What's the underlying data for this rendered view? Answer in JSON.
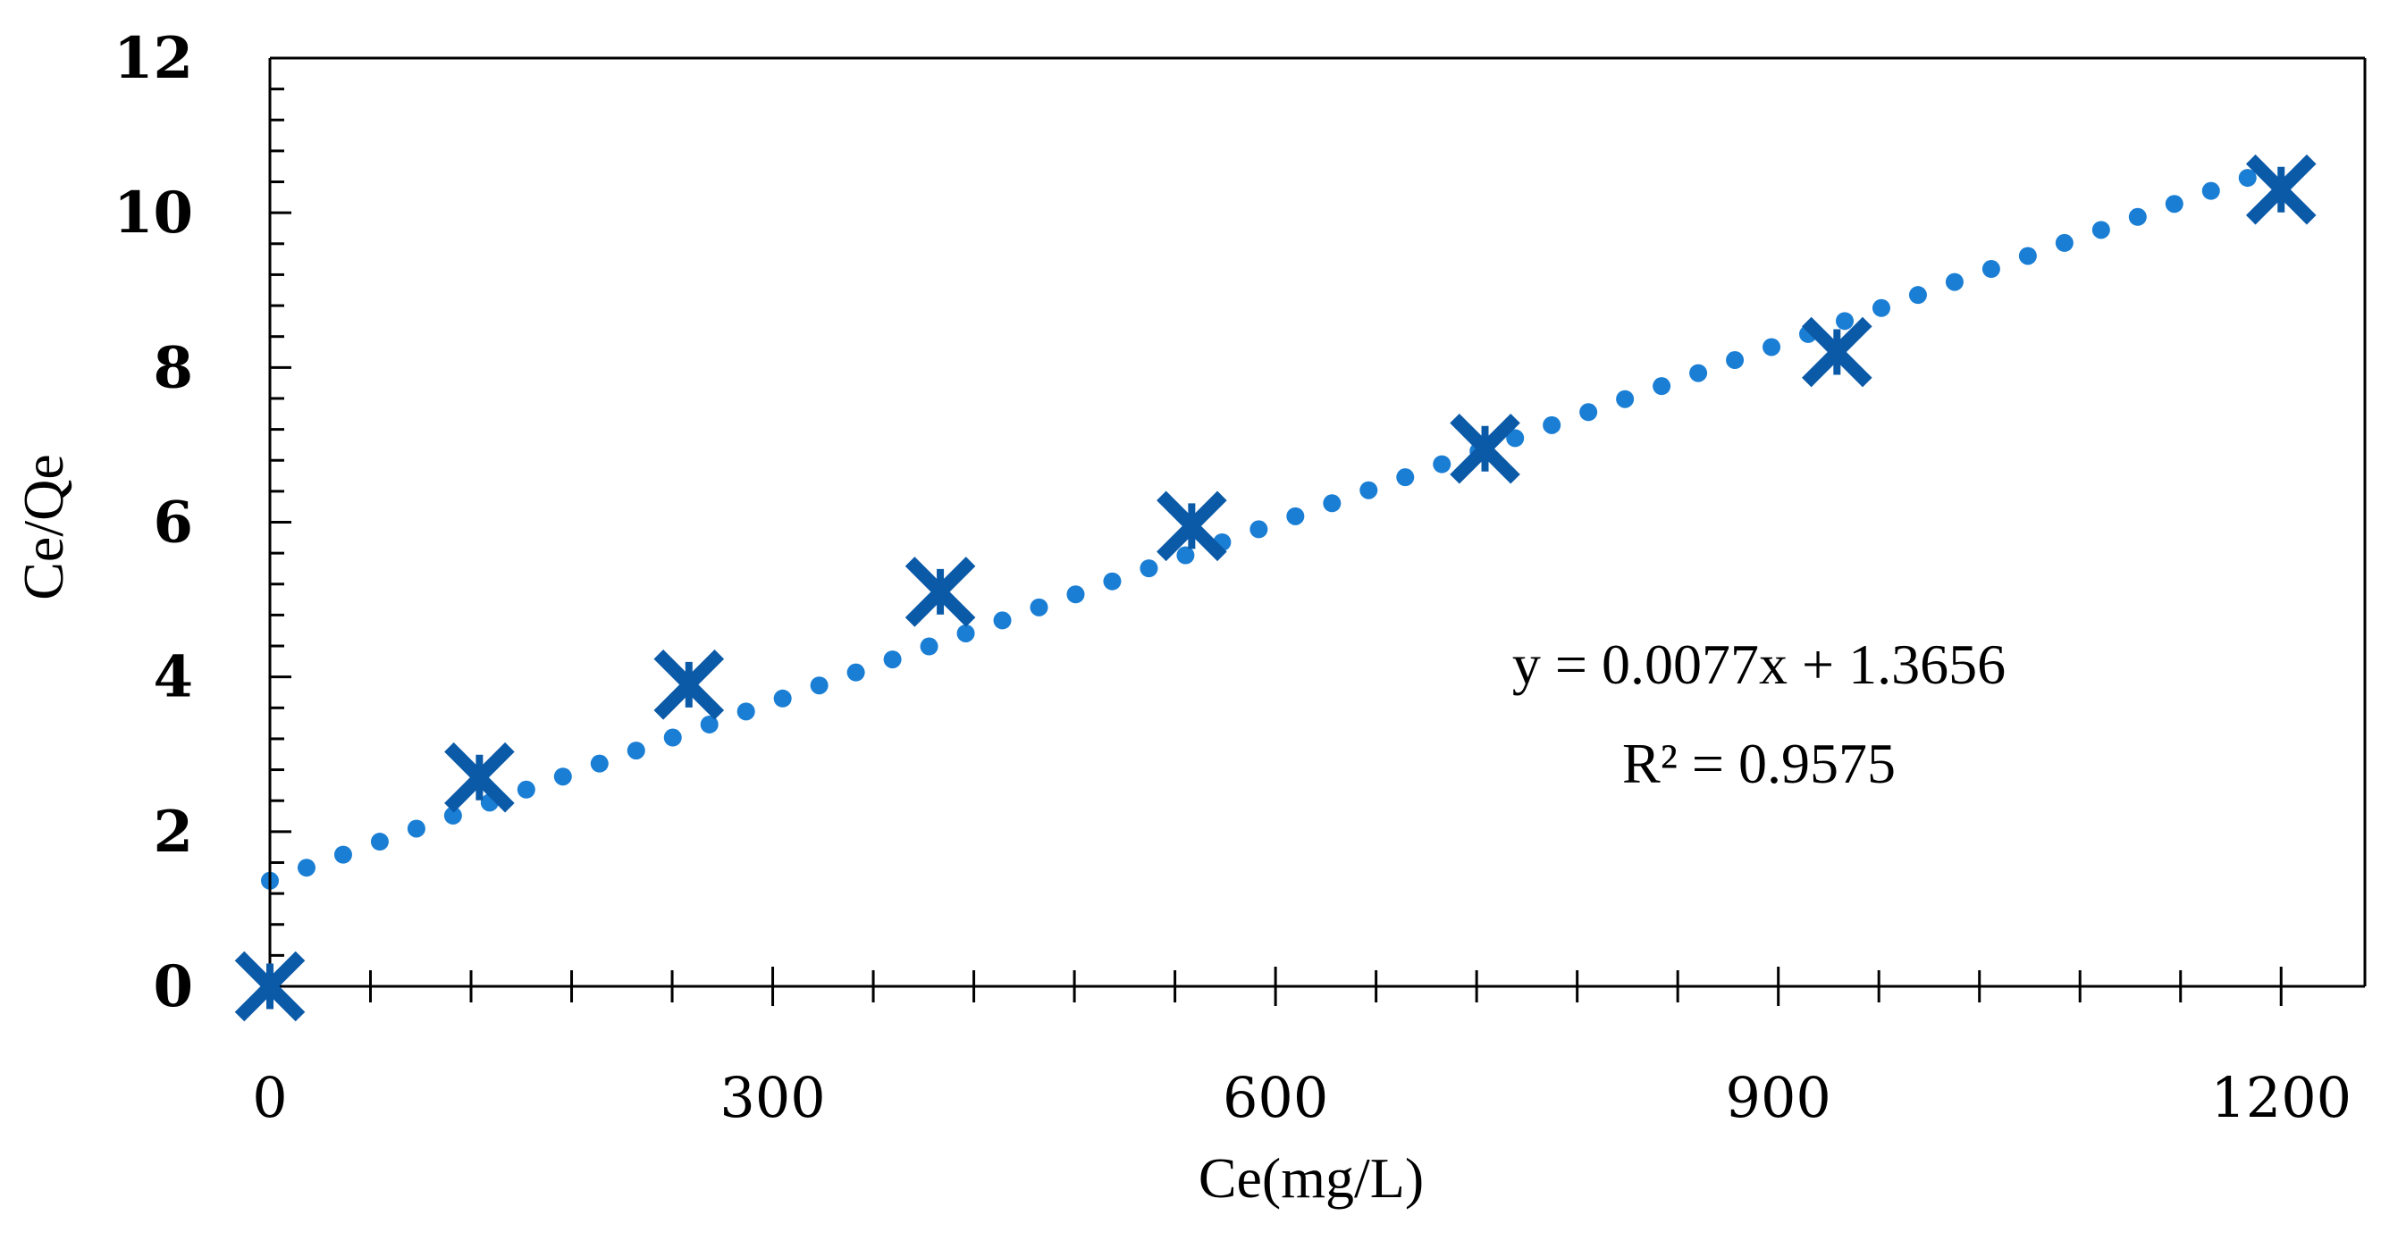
{
  "chart_data": {
    "type": "scatter",
    "title": "",
    "xlabel": "Ce(mg/L)",
    "ylabel": "Ce/Qe",
    "xlim": [
      0,
      1250
    ],
    "ylim": [
      0,
      12
    ],
    "x_ticks": [
      0,
      300,
      600,
      900,
      1200
    ],
    "x_tick_labels": [
      "0",
      "300",
      "600",
      "900",
      "1200"
    ],
    "x_minor_step": 60,
    "y_ticks": [
      0,
      2,
      4,
      6,
      8,
      10,
      12
    ],
    "y_tick_labels": [
      "0",
      "2",
      "4",
      "6",
      "8",
      "10",
      "12"
    ],
    "y_minor_step": 0.4,
    "grid": false,
    "series": [
      {
        "name": "Ce/Qe",
        "marker": "x",
        "x": [
          0,
          125,
          250,
          400,
          550,
          725,
          935,
          1200
        ],
        "y": [
          0,
          2.7,
          3.9,
          5.1,
          5.95,
          6.95,
          8.2,
          10.3
        ]
      }
    ],
    "trendline": {
      "style": "dotted",
      "slope": 0.0077,
      "intercept": 1.3656,
      "x_range": [
        0,
        1180
      ],
      "equation_label": "y = 0.0077x + 1.3656",
      "r2_label": "R² = 0.9575"
    },
    "colors": {
      "marker": "#0b5aa8",
      "trendline": "#1a7ed4",
      "axis": "#000000"
    }
  }
}
